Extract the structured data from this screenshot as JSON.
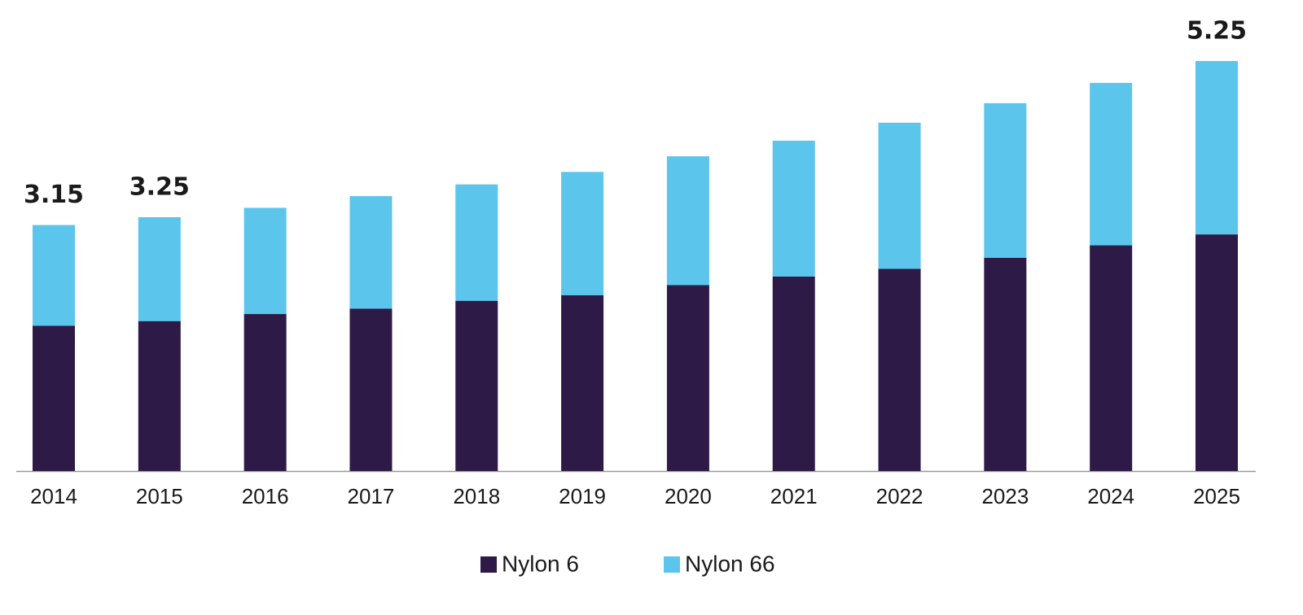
{
  "chart_data": {
    "type": "stacked_bar",
    "categories": [
      "2014",
      "2015",
      "2016",
      "2017",
      "2018",
      "2019",
      "2020",
      "2021",
      "2022",
      "2023",
      "2024",
      "2025"
    ],
    "series": [
      {
        "name": "Nylon 6",
        "color": "#2e1a47",
        "values": [
          1.86,
          1.92,
          2.01,
          2.08,
          2.18,
          2.25,
          2.38,
          2.49,
          2.59,
          2.73,
          2.89,
          3.03
        ]
      },
      {
        "name": "Nylon 66",
        "color": "#5bc5ec",
        "values": [
          1.29,
          1.33,
          1.36,
          1.44,
          1.49,
          1.58,
          1.65,
          1.74,
          1.87,
          1.98,
          2.08,
          2.22
        ]
      }
    ],
    "totals": [
      3.15,
      3.25,
      null,
      null,
      null,
      null,
      null,
      null,
      null,
      null,
      null,
      5.25
    ]
  }
}
